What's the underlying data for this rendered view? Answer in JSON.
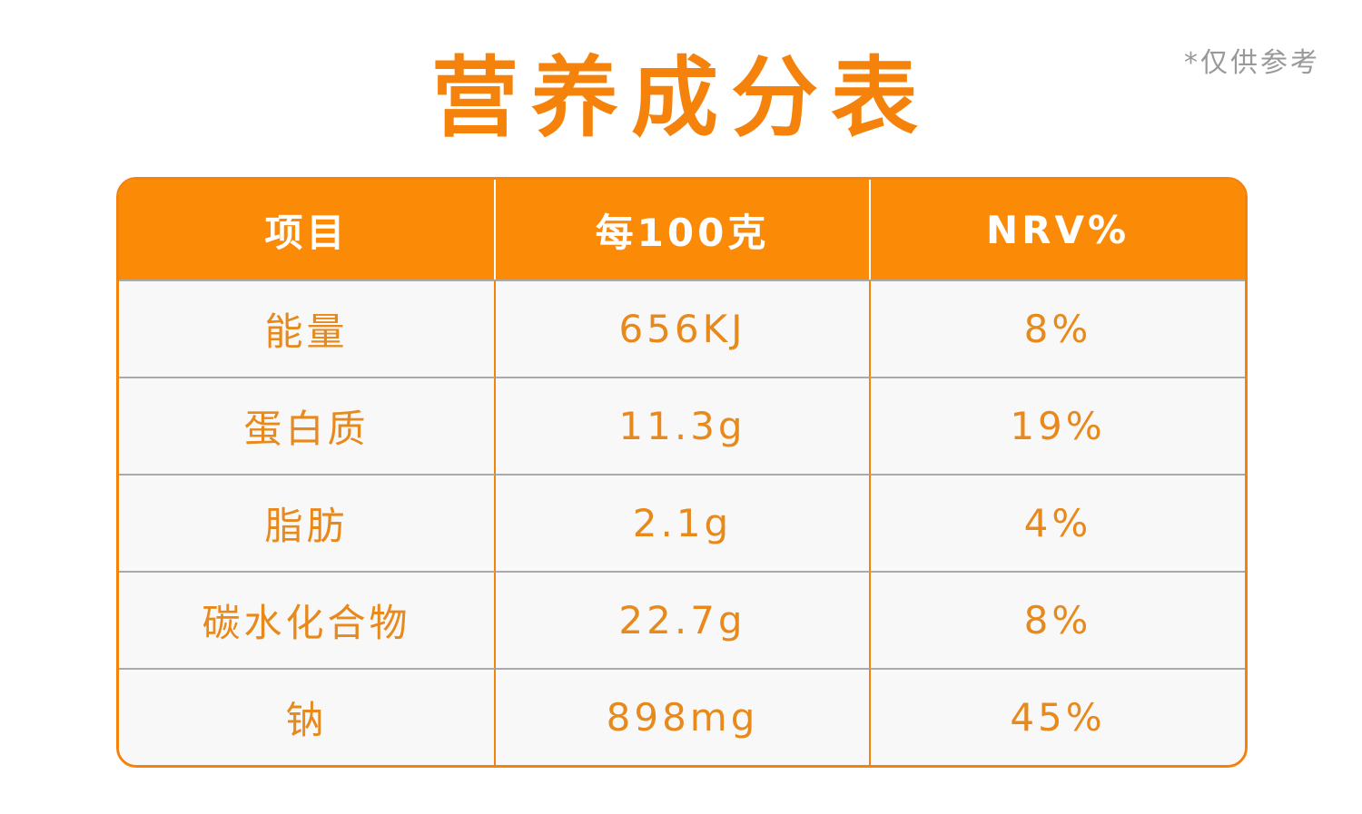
{
  "header": {
    "title": "营养成分表",
    "note": "*仅供参考"
  },
  "table": {
    "columns": [
      "项目",
      "每100克",
      "NRV%"
    ],
    "rows": [
      [
        "能量",
        "656KJ",
        "8%"
      ],
      [
        "蛋白质",
        "11.3g",
        "19%"
      ],
      [
        "脂肪",
        "2.1g",
        "4%"
      ],
      [
        "碳水化合物",
        "22.7g",
        "8%"
      ],
      [
        "钠",
        "898mg",
        "45%"
      ]
    ]
  }
}
